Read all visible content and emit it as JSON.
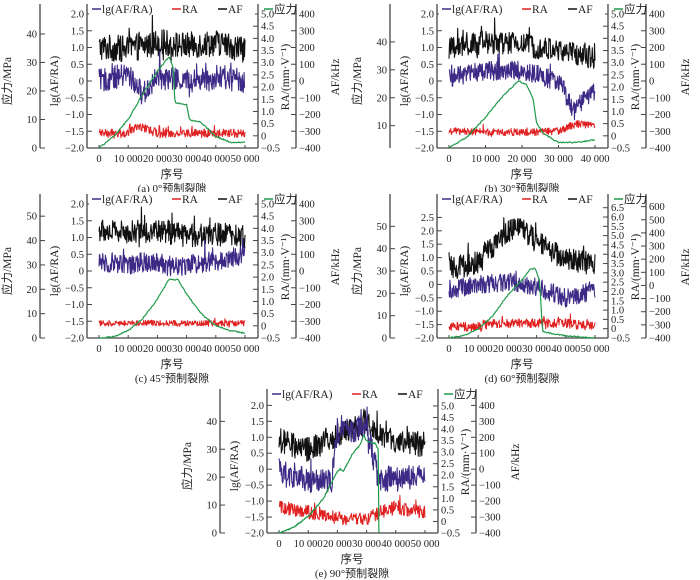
{
  "figure": {
    "legend": [
      "lg(AF/RA)",
      "RA",
      "AF",
      "应力"
    ],
    "colors": {
      "lg": "#3d2a86",
      "RA": "#e02020",
      "AF": "#111111",
      "stress": "#1f9a4a"
    },
    "xlabel": "序号",
    "ylabels": {
      "stress": "应力/MPa",
      "lg": "lg(AF/RA)",
      "RA": "RA/(mm·V⁻¹)",
      "AF": "AF/kHz"
    }
  },
  "chart_data": [
    {
      "id": "a",
      "type": "line",
      "caption": "(a) 0°预制裂隙",
      "xlim": [
        0,
        50000
      ],
      "xticks": [
        0,
        10000,
        20000,
        30000,
        40000,
        50000
      ],
      "xticklabels": [
        "0",
        "10 000",
        "20 000",
        "30 000",
        "40 000",
        "50 000"
      ],
      "stress_axis": {
        "range": [
          0,
          47
        ],
        "ticks": [
          0,
          10,
          20,
          30,
          40
        ]
      },
      "lg_axis": {
        "range": [
          -2.0,
          2.0
        ],
        "ticks": [
          -2.0,
          -1.5,
          -1.0,
          -0.5,
          0,
          0.5,
          1.0,
          1.5,
          2.0
        ],
        "ticklabels": [
          "−2.0",
          "−1.5",
          "−1.0",
          "−0.5",
          "0",
          "0.5",
          "1.0",
          "1.5",
          "2.0"
        ]
      },
      "ra_axis": {
        "range": [
          -0.5,
          5.0
        ],
        "ticks": [
          -0.5,
          0,
          0.5,
          1.0,
          1.5,
          2.0,
          2.5,
          3.0,
          3.5,
          4.0,
          4.5,
          5.0
        ],
        "ticklabels": [
          "−0.5",
          "0",
          "0.5",
          "1.0",
          "1.5",
          "2.0",
          "2.5",
          "3.0",
          "3.5",
          "4.0",
          "4.5",
          "5.0"
        ]
      },
      "af_axis": {
        "range": [
          -400,
          400
        ],
        "ticks": [
          -400,
          -300,
          -200,
          -100,
          0,
          100,
          200,
          300,
          400
        ],
        "ticklabels": [
          "−400",
          "−300",
          "−200",
          "−100",
          "0",
          "100",
          "200",
          "300",
          "400"
        ]
      },
      "series": [
        {
          "name": "应力",
          "axis": "stress",
          "x": [
            0,
            5000,
            10000,
            15000,
            20000,
            24000,
            25500,
            26000,
            30000,
            31000,
            35000,
            40000,
            45000,
            50000
          ],
          "values": [
            0,
            4,
            10,
            19,
            27,
            32,
            28,
            16,
            15,
            10,
            9,
            4,
            2,
            2
          ]
        },
        {
          "name": "lg(AF/RA)",
          "axis": "lg",
          "x": [
            0,
            10000,
            15000,
            20000,
            30000,
            40000,
            50000
          ],
          "values": [
            0.0,
            0.2,
            -0.4,
            0.1,
            0.0,
            0.1,
            0.0
          ],
          "noise": 0.35
        },
        {
          "name": "RA",
          "axis": "RA",
          "x": [
            0,
            10000,
            14000,
            20000,
            30000,
            40000,
            50000
          ],
          "values": [
            0.1,
            0.1,
            0.4,
            0.1,
            0.1,
            0.1,
            0.1
          ],
          "noise": 0.18
        },
        {
          "name": "AF",
          "axis": "AF",
          "x": [
            0,
            10000,
            20000,
            30000,
            40000,
            50000
          ],
          "values": [
            200,
            190,
            230,
            210,
            230,
            190
          ],
          "noise": 80
        }
      ]
    },
    {
      "id": "b",
      "type": "line",
      "caption": "(b) 30°预制裂隙",
      "xlim": [
        0,
        40000
      ],
      "xticks": [
        0,
        10000,
        20000,
        30000,
        40000
      ],
      "xticklabels": [
        "0",
        "10 000",
        "20 000",
        "30 000",
        "40 000"
      ],
      "stress_axis": {
        "range": [
          2,
          50
        ],
        "ticks": [
          10,
          20,
          30,
          40
        ]
      },
      "lg_axis": {
        "range": [
          -2.0,
          2.0
        ],
        "ticks": [
          -2.0,
          -1.5,
          -1.0,
          -0.5,
          0,
          0.5,
          1.0,
          1.5,
          2.0
        ],
        "ticklabels": [
          "−2.0",
          "−1.5",
          "−1.0",
          "−0.5",
          "0",
          "0.5",
          "1.0",
          "1.5",
          "2.0"
        ]
      },
      "ra_axis": {
        "range": [
          -0.5,
          5.0
        ],
        "ticks": [
          -0.5,
          0,
          0.5,
          1.0,
          1.5,
          2.0,
          2.5,
          3.0,
          3.5,
          4.0,
          4.5,
          5.0
        ],
        "ticklabels": [
          "−0.5",
          "0",
          "0.5",
          "1.0",
          "1.5",
          "2.0",
          "2.5",
          "3.0",
          "3.5",
          "4.0",
          "4.5",
          "5.0"
        ]
      },
      "af_axis": {
        "range": [
          -400,
          400
        ],
        "ticks": [
          -400,
          -300,
          -200,
          -100,
          0,
          100,
          200,
          300,
          400
        ],
        "ticklabels": [
          "−400",
          "−300",
          "−200",
          "−100",
          "0",
          "100",
          "200",
          "300",
          "400"
        ]
      },
      "series": [
        {
          "name": "应力",
          "axis": "stress",
          "x": [
            0,
            5000,
            10000,
            15000,
            19000,
            21000,
            23000,
            24000,
            26000,
            30000,
            35000,
            40000
          ],
          "values": [
            2,
            6,
            13,
            21,
            26,
            25,
            20,
            11,
            7,
            4,
            4,
            5
          ]
        },
        {
          "name": "lg(AF/RA)",
          "axis": "lg",
          "x": [
            0,
            10000,
            20000,
            30000,
            34000,
            37000,
            40000
          ],
          "values": [
            0.1,
            0.3,
            0.3,
            0.0,
            -0.9,
            -0.6,
            -0.3
          ],
          "noise": 0.3
        },
        {
          "name": "RA",
          "axis": "RA",
          "x": [
            0,
            10000,
            20000,
            30000,
            35000,
            40000
          ],
          "values": [
            0.2,
            0.15,
            0.15,
            0.2,
            0.5,
            0.4
          ],
          "noise": 0.15
        },
        {
          "name": "AF",
          "axis": "AF",
          "x": [
            0,
            10000,
            20000,
            30000,
            40000
          ],
          "values": [
            190,
            230,
            220,
            180,
            140
          ],
          "noise": 70
        }
      ]
    },
    {
      "id": "c",
      "type": "line",
      "caption": "(c) 45°预制裂隙",
      "xlim": [
        0,
        50000
      ],
      "xticks": [
        0,
        10000,
        20000,
        30000,
        40000,
        50000
      ],
      "xticklabels": [
        "0",
        "10 000",
        "20 000",
        "30 000",
        "40 000",
        "50 000"
      ],
      "stress_axis": {
        "range": [
          0,
          55
        ],
        "ticks": [
          0,
          10,
          20,
          30,
          40,
          50
        ]
      },
      "lg_axis": {
        "range": [
          -2.0,
          2.0
        ],
        "ticks": [
          -2.0,
          -1.5,
          -1.0,
          -0.5,
          0,
          0.5,
          1.0,
          1.5,
          2.0
        ],
        "ticklabels": [
          "−2.0",
          "−1.5",
          "−1.0",
          "−0.5",
          "0",
          "0.5",
          "1.0",
          "1.5",
          "2.0"
        ]
      },
      "ra_axis": {
        "range": [
          -0.5,
          5.0
        ],
        "ticks": [
          -0.5,
          0,
          0.5,
          1.0,
          1.5,
          2.0,
          2.5,
          3.0,
          3.5,
          4.0,
          4.5,
          5.0
        ],
        "ticklabels": [
          "−0.5",
          "0",
          "0.5",
          "1.0",
          "1.5",
          "2.0",
          "2.5",
          "3.0",
          "3.5",
          "4.0",
          "4.5",
          "5.0"
        ]
      },
      "af_axis": {
        "range": [
          -400,
          400
        ],
        "ticks": [
          -400,
          -300,
          -200,
          -100,
          0,
          100,
          200,
          300,
          400
        ],
        "ticklabels": [
          "−400",
          "−300",
          "−200",
          "−100",
          "0",
          "100",
          "200",
          "300",
          "400"
        ]
      },
      "series": [
        {
          "name": "应力",
          "axis": "stress",
          "x": [
            0,
            5000,
            10000,
            15000,
            20000,
            24000,
            27000,
            30000,
            35000,
            40000,
            45000,
            50000
          ],
          "values": [
            0,
            0.5,
            3,
            8,
            16,
            24,
            24,
            18,
            10,
            5,
            3,
            2
          ]
        },
        {
          "name": "lg(AF/RA)",
          "axis": "lg",
          "x": [
            0,
            10000,
            20000,
            25000,
            30000,
            40000,
            50000
          ],
          "values": [
            0.3,
            0.2,
            0.3,
            0.1,
            0.2,
            0.3,
            0.5
          ],
          "noise": 0.3
        },
        {
          "name": "RA",
          "axis": "RA",
          "x": [
            0,
            10000,
            20000,
            30000,
            40000,
            50000
          ],
          "values": [
            0.1,
            0.12,
            0.12,
            0.1,
            0.1,
            0.1
          ],
          "noise": 0.12
        },
        {
          "name": "AF",
          "axis": "AF",
          "x": [
            0,
            10000,
            20000,
            30000,
            40000,
            50000
          ],
          "values": [
            240,
            230,
            240,
            210,
            220,
            200
          ],
          "noise": 70
        }
      ]
    },
    {
      "id": "d",
      "type": "line",
      "caption": "(d) 60°预制裂隙",
      "xlim": [
        0,
        50000
      ],
      "xticks": [
        0,
        10000,
        20000,
        30000,
        40000,
        50000
      ],
      "xticklabels": [
        "0",
        "10 000",
        "20 000",
        "30 000",
        "40 000",
        "50 000"
      ],
      "stress_axis": {
        "range": [
          0,
          60
        ],
        "ticks": [
          0,
          10,
          20,
          30,
          40,
          50
        ]
      },
      "lg_axis": {
        "range": [
          -2.0,
          3.0
        ],
        "ticks": [
          -2.0,
          -1.5,
          -1.0,
          -0.5,
          0,
          0.5,
          1.0,
          1.5,
          2.0,
          2.5
        ],
        "ticklabels": [
          "−2.0",
          "−1.5",
          "−1.0",
          "−0.5",
          "0",
          "0.5",
          "1.0",
          "1.5",
          "2.0",
          "2.5"
        ]
      },
      "ra_axis": {
        "range": [
          -0.5,
          6.7
        ],
        "ticks": [
          -0.5,
          0,
          0.5,
          1.0,
          1.5,
          2.0,
          2.5,
          3.0,
          3.5,
          4.0,
          4.5,
          5.0,
          5.5,
          6.0,
          6.5
        ],
        "ticklabels": [
          "−0.5",
          "0",
          "0.5",
          "1.0",
          "1.5",
          "2.0",
          "2.5",
          "3.0",
          "3.5",
          "4.0",
          "4.5",
          "5.0",
          "5.5",
          "6.0",
          "6.5"
        ]
      },
      "af_axis": {
        "range": [
          -400,
          620
        ],
        "ticks": [
          -400,
          -300,
          -200,
          -100,
          0,
          100,
          200,
          300,
          400,
          500,
          600
        ],
        "ticklabels": [
          "−400",
          "−300",
          "−200",
          "−100",
          "0",
          "100",
          "200",
          "300",
          "400",
          "500",
          "600"
        ]
      },
      "series": [
        {
          "name": "应力",
          "axis": "stress",
          "x": [
            0,
            5000,
            10000,
            15000,
            20000,
            25000,
            28000,
            29500,
            31000,
            32000,
            35000,
            40000,
            45000,
            50000
          ],
          "values": [
            0,
            1,
            4,
            10,
            19,
            26,
            31,
            31,
            26,
            3,
            2,
            1,
            0.5,
            0
          ]
        },
        {
          "name": "lg(AF/RA)",
          "axis": "lg",
          "x": [
            0,
            10000,
            20000,
            30000,
            40000,
            50000
          ],
          "values": [
            -0.2,
            0.0,
            0.1,
            -0.1,
            -0.5,
            -0.2
          ],
          "noise": 0.35
        },
        {
          "name": "RA",
          "axis": "RA",
          "x": [
            0,
            10000,
            15000,
            20000,
            30000,
            40000,
            50000
          ],
          "values": [
            0.1,
            0.1,
            0.3,
            0.3,
            0.3,
            0.3,
            0.1
          ],
          "noise": 0.25
        },
        {
          "name": "AF",
          "axis": "AF",
          "x": [
            0,
            10000,
            20000,
            25000,
            30000,
            40000,
            50000
          ],
          "values": [
            130,
            170,
            420,
            440,
            330,
            200,
            160
          ],
          "noise": 90
        }
      ]
    },
    {
      "id": "e",
      "type": "line",
      "caption": "(e) 90°预制裂隙",
      "xlim": [
        0,
        50000
      ],
      "xticks": [
        0,
        10000,
        20000,
        30000,
        40000,
        50000
      ],
      "xticklabels": [
        "0",
        "10 000",
        "20 000",
        "30 000",
        "40 000",
        "50 000"
      ],
      "stress_axis": {
        "range": [
          0,
          48
        ],
        "ticks": [
          0,
          10,
          20,
          30,
          40
        ]
      },
      "lg_axis": {
        "range": [
          -2.0,
          2.2
        ],
        "ticks": [
          -2.0,
          -1.5,
          -1.0,
          -0.5,
          0,
          0.5,
          1.0,
          1.5,
          2.0
        ],
        "ticklabels": [
          "−2.0",
          "−1.5",
          "−1.0",
          "−0.5",
          "0",
          "0.5",
          "1.0",
          "1.5",
          "2.0"
        ]
      },
      "ra_axis": {
        "range": [
          -0.5,
          5.3
        ],
        "ticks": [
          -0.5,
          0,
          0.5,
          1.0,
          1.5,
          2.0,
          2.5,
          3.0,
          3.5,
          4.0,
          4.5,
          5.0
        ],
        "ticklabels": [
          "−0.5",
          "0",
          "0.5",
          "1.0",
          "1.5",
          "2.0",
          "2.5",
          "3.0",
          "3.5",
          "4.0",
          "4.5",
          "5.0"
        ]
      },
      "af_axis": {
        "range": [
          -400,
          440
        ],
        "ticks": [
          -400,
          -300,
          -200,
          -100,
          0,
          100,
          200,
          300,
          400
        ],
        "ticklabels": [
          "−400",
          "−300",
          "−200",
          "−100",
          "0",
          "100",
          "200",
          "300",
          "400"
        ]
      },
      "series": [
        {
          "name": "应力",
          "axis": "stress",
          "x": [
            0,
            5000,
            10000,
            15000,
            20000,
            21000,
            22000,
            25000,
            28000,
            29000,
            30000,
            33000,
            34000,
            34200
          ],
          "values": [
            0,
            2,
            6,
            12,
            22,
            23,
            22,
            28,
            32,
            35,
            33,
            32,
            30,
            0
          ]
        },
        {
          "name": "lg(AF/RA)",
          "axis": "lg",
          "x": [
            0,
            10000,
            18000,
            20000,
            30000,
            34000,
            40000,
            50000
          ],
          "values": [
            0.0,
            -0.4,
            -0.4,
            1.2,
            1.3,
            -0.3,
            -0.3,
            -0.2
          ],
          "noise": 0.4
        },
        {
          "name": "RA",
          "axis": "RA",
          "x": [
            0,
            10000,
            20000,
            30000,
            35000,
            40000,
            50000
          ],
          "values": [
            0.6,
            0.4,
            0.15,
            0.1,
            0.4,
            0.6,
            0.4
          ],
          "noise": 0.3
        },
        {
          "name": "AF",
          "axis": "AF",
          "x": [
            0,
            10000,
            20000,
            30000,
            40000,
            50000
          ],
          "values": [
            180,
            120,
            220,
            300,
            150,
            160
          ],
          "noise": 80
        }
      ]
    }
  ]
}
